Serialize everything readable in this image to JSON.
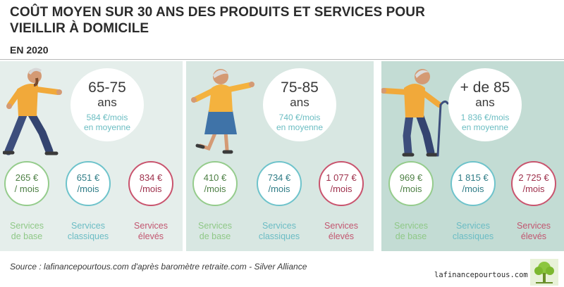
{
  "title": {
    "line1": "COÛT MOYEN SUR 30 ANS DES PRODUITS ET SERVICES POUR",
    "line2": "VIEILLIR À DOMICILE"
  },
  "subtitle": "EN 2020",
  "colors": {
    "base": "#95cc8c",
    "classiques": "#6ec3cb",
    "eleves": "#c9546e",
    "panel_light": "#e5eeeb",
    "panel_mid": "#d8e7e2",
    "panel_dark": "#c3dcd4"
  },
  "groups": [
    {
      "age": "65-75",
      "ans": "ans",
      "cost": "584 €/mois",
      "avg": "en moyenne",
      "illustration": "elderly-man-dancing-icon",
      "tiers": [
        {
          "amount": "265 €",
          "unit": "/ mois",
          "label1": "Services",
          "label2": "de base"
        },
        {
          "amount": "651 €",
          "unit": "/mois",
          "label1": "Services",
          "label2": "classiques"
        },
        {
          "amount": "834 €",
          "unit": "/mois",
          "label1": "Services",
          "label2": "élevés"
        }
      ]
    },
    {
      "age": "75-85",
      "ans": "ans",
      "cost": "740 €/mois",
      "avg": "en moyenne",
      "illustration": "elderly-woman-dancing-icon",
      "tiers": [
        {
          "amount": "410 €",
          "unit": "/mois",
          "label1": "Services",
          "label2": "de base"
        },
        {
          "amount": "734 €",
          "unit": "/mois",
          "label1": "Services",
          "label2": "classiques"
        },
        {
          "amount": "1 077 €",
          "unit": "/mois",
          "label1": "Services",
          "label2": "élevés"
        }
      ]
    },
    {
      "age": "+ de 85",
      "ans": "ans",
      "cost": "1 836 €/mois",
      "avg": "en moyenne",
      "illustration": "elderly-man-with-cane-icon",
      "tiers": [
        {
          "amount": "969 €",
          "unit": "/mois",
          "label1": "Services",
          "label2": "de base"
        },
        {
          "amount": "1 815 €",
          "unit": "/mois",
          "label1": "Services",
          "label2": "classiques"
        },
        {
          "amount": "2 725 €",
          "unit": "/mois",
          "label1": "Services",
          "label2": "élevés"
        }
      ]
    }
  ],
  "source": "Source : lafinancepourtous.com d'après baromètre retraite.com - Silver Alliance",
  "site": "lafinancepourtous.com",
  "logo_icon": "tree-logo-icon"
}
